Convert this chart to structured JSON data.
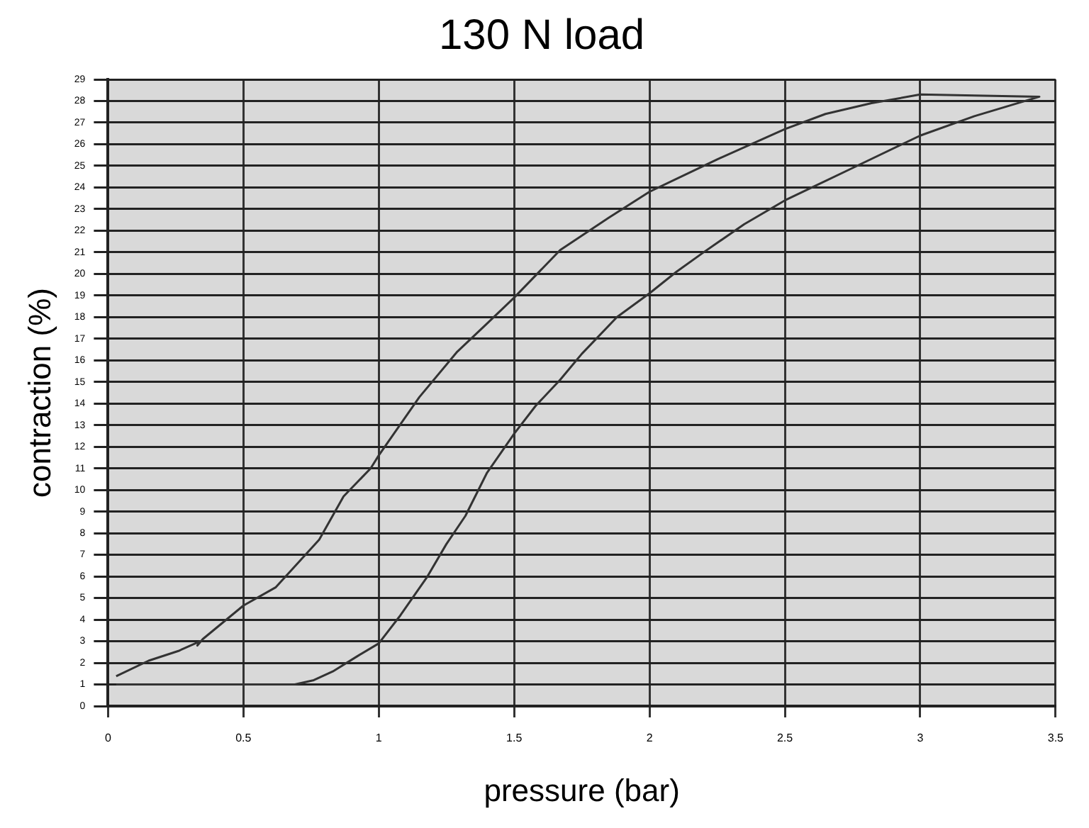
{
  "chart_data": {
    "type": "line",
    "title": "130 N load",
    "xlabel": "pressure (bar)",
    "ylabel": "contraction (%)",
    "series": [
      {
        "color": "#333333",
        "x": [
          0.03,
          0.3,
          0.5,
          0.69,
          0.76,
          0.83,
          0.92,
          1.0,
          1.08,
          1.18,
          1.25,
          1.32,
          1.4,
          1.5,
          1.58,
          1.67,
          1.75,
          1.88,
          2.0,
          2.1,
          2.2,
          2.35,
          2.5,
          2.75,
          3.0,
          3.2,
          3.44,
          3.2,
          3.0,
          2.82,
          2.65,
          2.5,
          2.25,
          2.0,
          1.85,
          1.67,
          1.5,
          1.4,
          1.29,
          1.15,
          1.0,
          0.97,
          0.87,
          0.78,
          0.62,
          0.5,
          0.35,
          0.33,
          0.34,
          0.26,
          0.15,
          0.03
        ],
        "values": [
          1.0,
          1.0,
          1.0,
          1.0,
          1.2,
          1.6,
          2.3,
          2.9,
          4.2,
          6.0,
          7.5,
          8.8,
          10.8,
          12.6,
          13.9,
          15.1,
          16.3,
          18.0,
          19.1,
          20.1,
          21.0,
          22.3,
          23.4,
          24.9,
          26.4,
          27.3,
          28.2,
          28.25,
          28.3,
          27.9,
          27.4,
          26.7,
          25.3,
          23.8,
          22.6,
          21.1,
          18.9,
          17.7,
          16.4,
          14.3,
          11.6,
          11.0,
          9.7,
          7.7,
          5.5,
          4.65,
          3.1,
          2.8,
          3.0,
          2.55,
          2.1,
          1.38
        ]
      }
    ],
    "xlim": [
      0,
      3.5
    ],
    "xticks": [
      0,
      0.5,
      1,
      1.5,
      2,
      2.5,
      3,
      3.5
    ],
    "ylim": [
      0,
      29
    ],
    "yticks": [
      0,
      1,
      2,
      3,
      4,
      5,
      6,
      7,
      8,
      9,
      10,
      11,
      12,
      13,
      14,
      15,
      16,
      17,
      18,
      19,
      20,
      21,
      22,
      23,
      24,
      25,
      26,
      27,
      28,
      29
    ],
    "grid": true,
    "marker": "none",
    "line_style": "solid"
  }
}
